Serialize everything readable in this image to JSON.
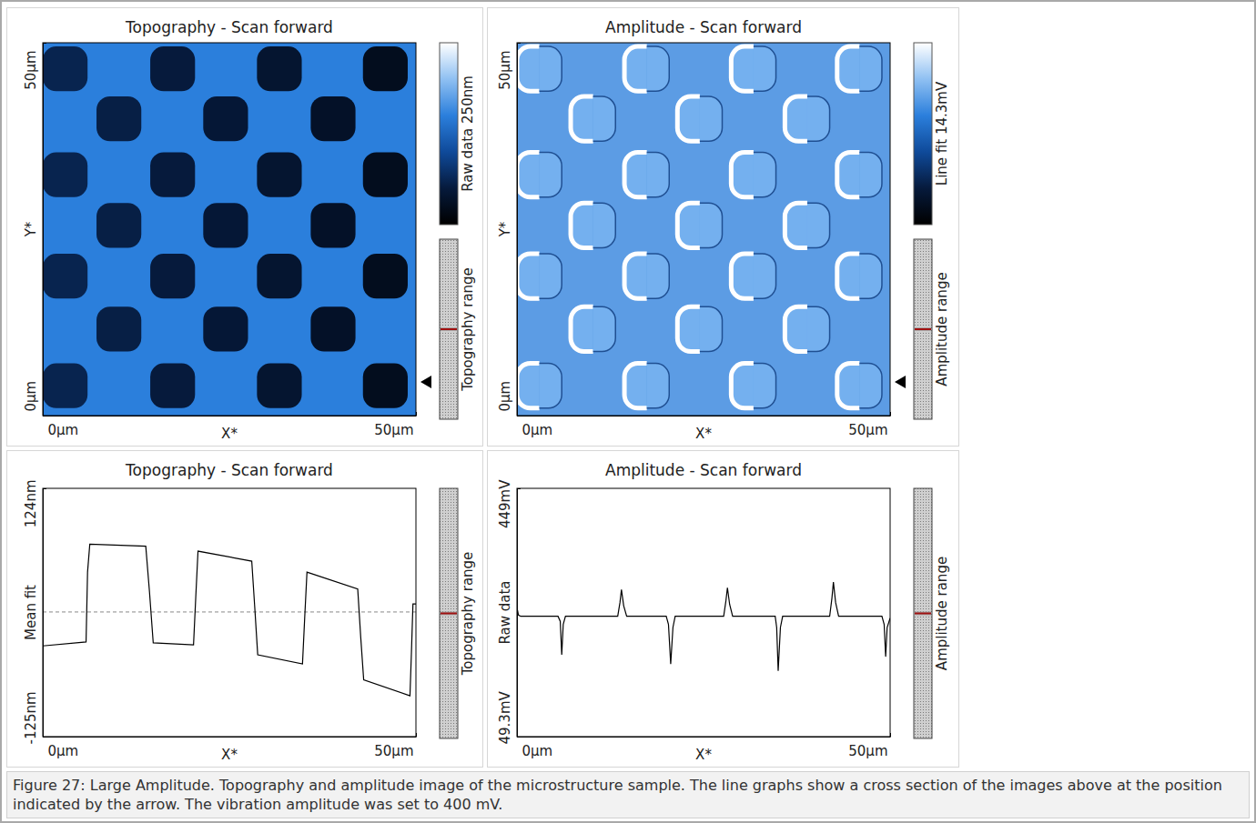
{
  "chart_data": [
    {
      "type": "image",
      "title": "Topography - Scan forward",
      "x_label": "X*",
      "y_label": "Y*",
      "xlim": [
        0,
        50
      ],
      "ylim": [
        0,
        50
      ],
      "xticks": [
        {
          "value": 0,
          "label": "0µm"
        },
        {
          "value": 50,
          "label": "50µm"
        }
      ],
      "yticks": [
        {
          "value": 0,
          "label": "0µm"
        },
        {
          "value": 50,
          "label": "50µm"
        }
      ],
      "colorbar_label": "Raw data 250nm",
      "zlim": [
        0,
        250
      ],
      "range_label": "Topography range",
      "profile_y": 4.5,
      "hole_size": 6,
      "surface_height": 150,
      "holes": {
        "x": [
          3.0,
          17.4,
          31.7,
          45.9,
          10.2,
          24.5,
          38.9,
          3.0,
          17.4,
          31.7,
          45.9,
          10.2,
          24.5,
          38.9,
          3.0,
          17.4,
          31.7,
          45.9,
          10.2,
          24.5,
          38.9,
          3.0,
          17.4,
          31.7,
          45.9
        ],
        "y": [
          46.5,
          46.5,
          46.5,
          46.5,
          39.8,
          39.8,
          39.8,
          32.3,
          32.3,
          32.3,
          32.3,
          25.5,
          25.5,
          25.5,
          18.7,
          18.7,
          18.7,
          18.7,
          11.6,
          11.6,
          11.6,
          4.0,
          4.0,
          4.0,
          4.0
        ],
        "height": [
          60,
          50,
          40,
          25,
          55,
          45,
          33,
          60,
          50,
          40,
          25,
          55,
          45,
          33,
          60,
          50,
          40,
          25,
          55,
          45,
          33,
          60,
          50,
          40,
          25
        ]
      }
    },
    {
      "type": "image",
      "title": "Amplitude - Scan forward",
      "x_label": "X*",
      "y_label": "Y*",
      "xlim": [
        0,
        50
      ],
      "ylim": [
        0,
        50
      ],
      "xticks": [
        {
          "value": 0,
          "label": "0µm"
        },
        {
          "value": 50,
          "label": "50µm"
        }
      ],
      "yticks": [
        {
          "value": 0,
          "label": "0µm"
        },
        {
          "value": 50,
          "label": "50µm"
        }
      ],
      "colorbar_label": "Line fit 14.3mV",
      "range_label": "Amplitude range",
      "profile_y": 4.5,
      "hole_size": 6,
      "holes": {
        "x": [
          3.0,
          17.4,
          31.7,
          45.9,
          10.2,
          24.5,
          38.9,
          3.0,
          17.4,
          31.7,
          45.9,
          10.2,
          24.5,
          38.9,
          3.0,
          17.4,
          31.7,
          45.9,
          10.2,
          24.5,
          38.9,
          3.0,
          17.4,
          31.7,
          45.9
        ],
        "y": [
          46.5,
          46.5,
          46.5,
          46.5,
          39.8,
          39.8,
          39.8,
          32.3,
          32.3,
          32.3,
          32.3,
          25.5,
          25.5,
          25.5,
          18.7,
          18.7,
          18.7,
          18.7,
          11.6,
          11.6,
          11.6,
          4.0,
          4.0,
          4.0,
          4.0
        ]
      }
    },
    {
      "type": "line",
      "title": "Topography - Scan forward",
      "x_label": "X*",
      "y_label": "Mean fit",
      "xlim": [
        0,
        50
      ],
      "ylim": [
        -125,
        124
      ],
      "xticks": [
        {
          "value": 0,
          "label": "0µm"
        },
        {
          "value": 50,
          "label": "50µm"
        }
      ],
      "yticks": [
        {
          "value": -125,
          "label": "-125nm"
        },
        {
          "value": 124,
          "label": "124nm"
        }
      ],
      "range_label": "Topography range",
      "mean_line": 0,
      "color": "#000000",
      "x": [
        0,
        5.8,
        6.0,
        6.3,
        13.8,
        14.3,
        14.8,
        20.2,
        20.5,
        20.8,
        28.0,
        28.4,
        28.8,
        34.8,
        35.1,
        35.4,
        42.2,
        42.6,
        43.0,
        49.2,
        49.4,
        49.6,
        50
      ],
      "values": [
        -34,
        -30,
        40,
        68,
        66,
        20,
        -31,
        -33,
        15,
        61,
        51,
        5,
        -43,
        -52,
        -5,
        40,
        23,
        -25,
        -68,
        -84,
        -40,
        8,
        8
      ]
    },
    {
      "type": "line",
      "title": "Amplitude - Scan forward",
      "x_label": "X*",
      "y_label": "Raw data",
      "xlim": [
        0,
        50
      ],
      "ylim": [
        49.3,
        449
      ],
      "xticks": [
        {
          "value": 0,
          "label": "0µm"
        },
        {
          "value": 50,
          "label": "50µm"
        }
      ],
      "yticks": [
        {
          "value": 49.3,
          "label": "49.3mV"
        },
        {
          "value": 449,
          "label": "449mV"
        }
      ],
      "range_label": "Amplitude range",
      "color": "#000000",
      "x": [
        0,
        0.2,
        0.5,
        5.5,
        5.8,
        6.0,
        6.2,
        6.5,
        13.5,
        13.8,
        14.0,
        14.3,
        14.7,
        20.0,
        20.3,
        20.6,
        20.9,
        21.2,
        27.7,
        28.0,
        28.2,
        28.5,
        28.9,
        34.6,
        34.8,
        35.0,
        35.3,
        35.6,
        41.9,
        42.2,
        42.4,
        42.7,
        43.1,
        48.9,
        49.2,
        49.4,
        49.6,
        50
      ],
      "values": [
        257,
        245,
        243,
        243,
        235,
        181,
        230,
        243,
        243,
        265,
        286,
        260,
        243,
        243,
        230,
        166,
        225,
        243,
        243,
        268,
        289,
        262,
        243,
        243,
        225,
        155,
        225,
        243,
        243,
        272,
        298,
        265,
        243,
        243,
        230,
        178,
        225,
        240
      ]
    }
  ],
  "caption": "Figure 27: Large Amplitude. Topography and amplitude image of the microstructure sample. The line graphs show a cross section of the images above at the position indicated by the arrow. The vibration amplitude was set to 400 mV."
}
